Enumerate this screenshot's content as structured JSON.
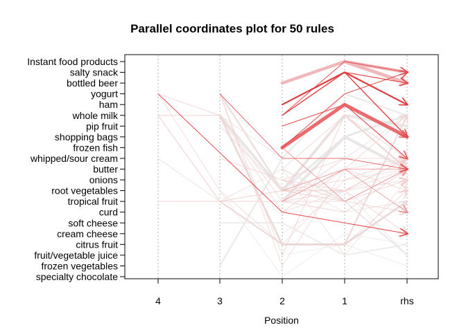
{
  "chart_data": {
    "type": "parallel-coordinates",
    "title": "Parallel coordinates plot for 50 rules",
    "xlabel": "Position",
    "ylabel": "",
    "positions": [
      "4",
      "3",
      "2",
      "1",
      "rhs"
    ],
    "items": [
      "Instant food products",
      "salty snack",
      "bottled beer",
      "yogurt",
      "ham",
      "whole milk",
      "pip fruit",
      "shopping bags",
      "frozen fish",
      "whipped/sour cream",
      "butter",
      "onions",
      "root vegetables",
      "tropical fruit",
      "curd",
      "soft cheese",
      "cream cheese",
      "citrus fruit",
      "fruit/vegetable juice",
      "frozen vegetables",
      "specialty chocolate"
    ],
    "grid": true,
    "colors": {
      "high_lift": "#e8333a",
      "mid_lift": "#ec8f93",
      "low_lift": "#ebe4e4",
      "grid": "#b0b0b0"
    },
    "rules": [
      {
        "path": [
          null,
          null,
          "bottled beer",
          "Instant food products",
          "salty snack"
        ],
        "width": 4.5,
        "color": "#f0b8ba"
      },
      {
        "path": [
          null,
          null,
          null,
          "Instant food products",
          "bottled beer"
        ],
        "width": 5,
        "color": "#f0b8ba"
      },
      {
        "path": [
          null,
          null,
          "ham",
          "salty snack",
          "ham"
        ],
        "width": 2.2,
        "color": "#e03b40"
      },
      {
        "path": [
          null,
          null,
          "whole milk",
          "salty snack",
          "shopping bags"
        ],
        "width": 1.5,
        "color": "#e34a4e"
      },
      {
        "path": [
          null,
          null,
          "frozen fish",
          "ham",
          "shopping bags"
        ],
        "width": 5,
        "color": "#ea6b6f"
      },
      {
        "path": [
          null,
          null,
          "pip fruit",
          "ham",
          "whipped/sour cream"
        ],
        "width": 1.2,
        "color": "#e9585c"
      },
      {
        "path": [
          null,
          null,
          "frozen fish",
          "yogurt",
          "salty snack"
        ],
        "width": 1,
        "color": "#e34a4e"
      },
      {
        "path": [
          null,
          null,
          "whole milk",
          "Instant food products",
          "salty snack"
        ],
        "width": 1,
        "color": "#e34a4e"
      },
      {
        "path": [
          null,
          null,
          null,
          "salty snack",
          "bottled beer"
        ],
        "width": 1.2,
        "color": "#e34a4e"
      },
      {
        "path": [
          "yogurt",
          null,
          "curd",
          "soft cheese",
          "cream cheese"
        ],
        "width": 1,
        "color": "#e34a4e"
      },
      {
        "path": [
          null,
          "yogurt",
          "whipped/sour cream",
          "whipped/sour cream",
          "butter"
        ],
        "width": 0.8,
        "color": "#e34a4e"
      },
      {
        "path": [
          null,
          null,
          "frozen fish",
          "tropical fruit",
          "butter"
        ],
        "width": 0.8,
        "color": "#ec8f93"
      },
      {
        "path": [
          null,
          null,
          "tropical fruit",
          "butter",
          "curd"
        ],
        "width": 0.8,
        "color": "#ec8f93"
      },
      {
        "path": [
          null,
          null,
          "root vegetables",
          "butter",
          "butter"
        ],
        "width": 1,
        "color": "#f2a9ab"
      },
      {
        "path": [
          null,
          "whole milk",
          "root vegetables",
          "whole milk",
          "pip fruit"
        ],
        "width": 4,
        "color": "#ebe6e6"
      },
      {
        "path": [
          null,
          null,
          "tropical fruit",
          "shopping bags",
          "butter"
        ],
        "width": 4,
        "color": "#ebe6e6"
      },
      {
        "path": [
          null,
          "whole milk",
          "citrus fruit",
          "citrus fruit",
          "tropical fruit"
        ],
        "width": 3,
        "color": "#ebdcdc"
      },
      {
        "path": [
          null,
          "yogurt",
          "root vegetables",
          "whole milk",
          "butter"
        ],
        "width": 2.5,
        "color": "#ece4e4"
      },
      {
        "path": [
          null,
          "tropical fruit",
          "citrus fruit",
          "citrus fruit",
          "whole milk"
        ],
        "width": 2,
        "color": "#eed8d8"
      },
      {
        "path": [
          null,
          null,
          "root vegetables",
          "root vegetables",
          "whipped/sour cream"
        ],
        "width": 1.5,
        "color": "#f0d6d6"
      },
      {
        "path": [
          "whole milk",
          "tropical fruit",
          "root vegetables",
          "tropical fruit",
          "butter"
        ],
        "width": 1,
        "color": "#f2cfcf"
      },
      {
        "path": [
          "yogurt",
          "whole milk",
          "tropical fruit",
          "whipped/sour cream",
          "butter"
        ],
        "width": 0.8,
        "color": "#f2cfcf"
      },
      {
        "path": [
          "yogurt",
          "root vegetables",
          "citrus fruit",
          "onions",
          "butter"
        ],
        "width": 0.8,
        "color": "#f2d5d5"
      },
      {
        "path": [
          "tropical fruit",
          "tropical fruit",
          "tropical fruit",
          "curd",
          "butter"
        ],
        "width": 1,
        "color": "#f2d5d5"
      },
      {
        "path": [
          null,
          "yogurt",
          "fruit/vegetable juice",
          "whole milk",
          "butter"
        ],
        "width": 0.8,
        "color": "#f2d5d5"
      },
      {
        "path": [
          null,
          "yogurt",
          "frozen vegetables",
          "butter",
          "whipped/sour cream"
        ],
        "width": 0.8,
        "color": "#f2d5d5"
      },
      {
        "path": [
          "whole milk",
          "whole milk",
          "curd",
          "root vegetables",
          "butter"
        ],
        "width": 0.8,
        "color": "#f2d5d5"
      },
      {
        "path": [
          null,
          "root vegetables",
          "specialty chocolate",
          "cream cheese",
          "citrus fruit"
        ],
        "width": 0.8,
        "color": "#efe6e6"
      },
      {
        "path": [
          null,
          "soft cheese",
          "soft cheese",
          "fruit/vegetable juice",
          "citrus fruit"
        ],
        "width": 1.5,
        "color": "#ebe8e8"
      },
      {
        "path": [
          null,
          "frozen vegetables",
          "whipped/sour cream",
          "yogurt",
          "whole milk"
        ],
        "width": 2.5,
        "color": "#ececec"
      },
      {
        "path": [
          null,
          null,
          "root vegetables",
          "shopping bags",
          "whole milk"
        ],
        "width": 3,
        "color": "#e8e8e8"
      },
      {
        "path": [
          null,
          null,
          "butter",
          "tropical fruit",
          "fruit/vegetable juice"
        ],
        "width": 2,
        "color": "#ebe8e8"
      },
      {
        "path": [
          null,
          null,
          "onions",
          "curd",
          "tropical fruit"
        ],
        "width": 1,
        "color": "#f0e2e2"
      },
      {
        "path": [
          null,
          null,
          "cream cheese",
          "root vegetables",
          "fruit/vegetable juice"
        ],
        "width": 1,
        "color": "#efe6e6"
      },
      {
        "path": [
          null,
          null,
          "fruit/vegetable juice",
          "citrus fruit",
          "frozen vegetables"
        ],
        "width": 0.8,
        "color": "#efe6e6"
      },
      {
        "path": [
          null,
          null,
          "onions",
          "whipped/sour cream",
          "whipped/sour cream"
        ],
        "width": 0.8,
        "color": "#f2cfcf"
      },
      {
        "path": [
          null,
          null,
          "tropical fruit",
          "butter",
          "root vegetables"
        ],
        "width": 0.8,
        "color": "#f2cfcf"
      },
      {
        "path": [
          null,
          null,
          "onions",
          "tropical fruit",
          "curd"
        ],
        "width": 0.8,
        "color": "#f2cfcf"
      },
      {
        "path": [
          "whole milk",
          "whole milk",
          "whipped/sour cream",
          "whipped/sour cream",
          "whole milk"
        ],
        "width": 0.8,
        "color": "#f0dada"
      },
      {
        "path": [
          "whipped/sour cream",
          "tropical fruit",
          "butter",
          "fruit/vegetable juice",
          "onions"
        ],
        "width": 0.8,
        "color": "#f0dada"
      },
      {
        "path": [
          null,
          "whipped/sour cream",
          "onions",
          "root vegetables",
          "cream cheese"
        ],
        "width": 0.8,
        "color": "#f2cfcf"
      },
      {
        "path": [
          null,
          "yogurt",
          "root vegetables",
          "butter",
          "whole milk"
        ],
        "width": 1,
        "color": "#f0dada"
      },
      {
        "path": [
          null,
          "pip fruit",
          "root vegetables",
          "whole milk",
          "whipped/sour cream"
        ],
        "width": 1,
        "color": "#f0dada"
      },
      {
        "path": [
          null,
          null,
          "citrus fruit",
          "citrus fruit",
          "root vegetables"
        ],
        "width": 0.8,
        "color": "#f2cfcf"
      },
      {
        "path": [
          null,
          null,
          "tropical fruit",
          "tropical fruit",
          "onions"
        ],
        "width": 0.8,
        "color": "#f2cfcf"
      },
      {
        "path": [
          null,
          null,
          "root vegetables",
          "onions",
          "whipped/sour cream"
        ],
        "width": 0.8,
        "color": "#f2cfcf"
      },
      {
        "path": [
          null,
          null,
          "curd",
          "butter",
          "butter"
        ],
        "width": 0.8,
        "color": "#f2cfcf"
      },
      {
        "path": [
          null,
          null,
          "fruit/vegetable juice",
          "whole milk",
          "butter"
        ],
        "width": 0.8,
        "color": "#f0dada"
      },
      {
        "path": [
          null,
          null,
          "tropical fruit",
          "root vegetables",
          "onions"
        ],
        "width": 0.8,
        "color": "#f2cfcf"
      },
      {
        "path": [
          null,
          null,
          "butter",
          "whole milk",
          "butter"
        ],
        "width": 0.8,
        "color": "#f2cfcf"
      }
    ]
  }
}
